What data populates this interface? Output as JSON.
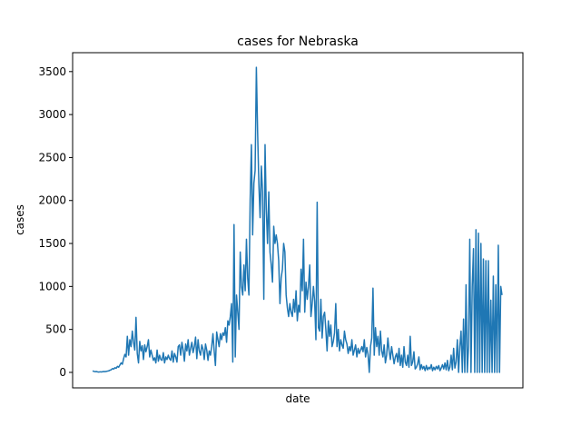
{
  "chart_data": {
    "type": "line",
    "title": "cases for Nebraska",
    "xlabel": "date",
    "ylabel": "cases",
    "ylim": [
      -180,
      3720
    ],
    "yticks": [
      0,
      500,
      1000,
      1500,
      2000,
      2500,
      3000,
      3500
    ],
    "x_tick_labels_shown": false,
    "grid": false,
    "series": [
      {
        "color": "#1f77b4",
        "values": [
          17,
          12,
          8,
          10,
          6,
          4,
          7,
          5,
          8,
          10,
          9,
          12,
          15,
          18,
          25,
          30,
          45,
          38,
          55,
          48,
          70,
          60,
          85,
          110,
          95,
          160,
          210,
          180,
          420,
          200,
          380,
          300,
          480,
          350,
          260,
          640,
          220,
          110,
          360,
          250,
          310,
          150,
          320,
          240,
          300,
          380,
          180,
          260,
          200,
          140,
          170,
          110,
          260,
          130,
          200,
          150,
          140,
          230,
          110,
          180,
          150,
          200,
          160,
          140,
          250,
          120,
          220,
          180,
          120,
          300,
          320,
          200,
          350,
          260,
          130,
          330,
          250,
          380,
          200,
          280,
          350,
          230,
          300,
          410,
          160,
          380,
          250,
          200,
          320,
          270,
          150,
          330,
          260,
          140,
          250,
          200,
          300,
          450,
          250,
          80,
          470,
          380,
          300,
          450,
          380,
          460,
          430,
          520,
          350,
          600,
          550,
          650,
          800,
          120,
          1720,
          180,
          900,
          700,
          500,
          1400,
          1000,
          900,
          1250,
          950,
          1550,
          1100,
          900,
          2000,
          2650,
          1600,
          2200,
          2350,
          3550,
          2800,
          2200,
          1800,
          2400,
          2100,
          850,
          2650,
          1900,
          1500,
          2100,
          1400,
          1250,
          1050,
          1700,
          1500,
          1600,
          1500,
          1300,
          800,
          1100,
          1200,
          1500,
          1400,
          900,
          750,
          650,
          800,
          700,
          650,
          850,
          700,
          950,
          600,
          780,
          700,
          1200,
          950,
          1550,
          700,
          1050,
          850,
          1000,
          1250,
          650,
          800,
          1000,
          820,
          380,
          1980,
          520,
          480,
          850,
          400,
          650,
          700,
          500,
          250,
          600,
          420,
          550,
          300,
          360,
          460,
          800,
          300,
          500,
          250,
          380,
          320,
          280,
          480,
          380,
          330,
          220,
          300,
          250,
          380,
          200,
          260,
          320,
          180,
          280,
          220,
          260,
          300,
          240,
          380,
          180,
          290,
          210,
          0,
          300,
          400,
          980,
          200,
          520,
          300,
          420,
          200,
          480,
          250,
          180,
          320,
          110,
          200,
          400,
          250,
          150,
          300,
          200,
          100,
          180,
          220,
          120,
          280,
          80,
          200,
          60,
          300,
          120,
          80,
          200,
          60,
          420,
          80,
          120,
          240,
          40,
          60,
          100,
          180,
          30,
          90,
          40,
          70,
          20,
          80,
          30,
          60,
          40,
          90,
          20,
          60,
          30,
          70,
          40,
          80,
          20,
          50,
          90,
          40,
          110,
          30,
          140,
          20,
          60,
          200,
          30,
          280,
          50,
          120,
          380,
          0,
          300,
          480,
          0,
          620,
          0,
          1020,
          0,
          300,
          1550,
          0,
          1000,
          1440,
          0,
          1660,
          0,
          1620,
          0,
          1500,
          0,
          1320,
          0,
          1300,
          0,
          1300,
          0,
          840,
          0,
          1120,
          0,
          1020,
          0,
          1480,
          0,
          1000,
          900
        ]
      }
    ]
  }
}
